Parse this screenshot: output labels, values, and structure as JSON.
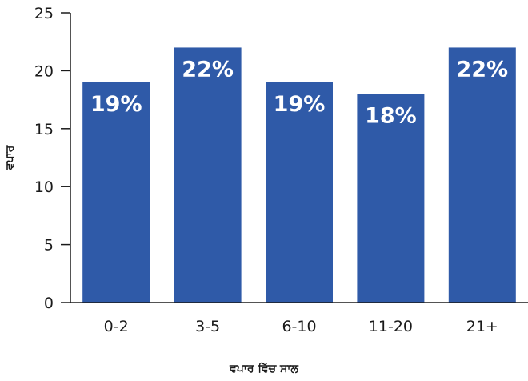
{
  "chart_data": {
    "type": "bar",
    "title": "",
    "xlabel": "ਵਪਾਰ ਵਿੱਚ ਸਾਲ",
    "ylabel": "ਵਪਾਰ",
    "categories": [
      "0-2",
      "3-5",
      "6-10",
      "11-20",
      "21+"
    ],
    "values": [
      19,
      22,
      19,
      18,
      22
    ],
    "data_labels": [
      "19%",
      "22%",
      "19%",
      "18%",
      "22%"
    ],
    "ylim": [
      0,
      25
    ],
    "yticks": [
      0,
      5,
      10,
      15,
      20,
      25
    ],
    "grid": false,
    "legend": "none",
    "bar_color": "#2f5aa8"
  }
}
